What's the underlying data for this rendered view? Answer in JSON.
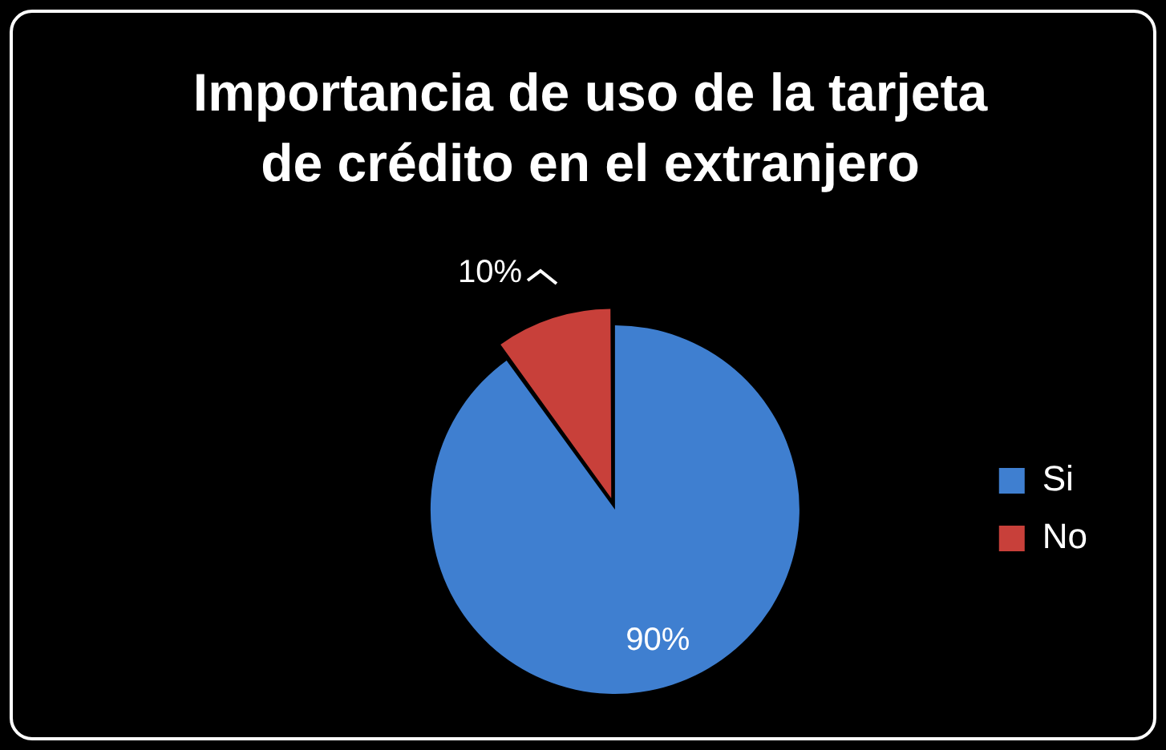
{
  "chart_data": {
    "type": "pie",
    "title": "Importancia de uso de la tarjeta de crédito en el extranjero",
    "categories": [
      "Si",
      "No"
    ],
    "values": [
      90,
      10
    ],
    "colors": [
      "#3f7fd0",
      "#c8403a"
    ],
    "value_labels": [
      "90%",
      "10%"
    ],
    "legend": "right"
  }
}
